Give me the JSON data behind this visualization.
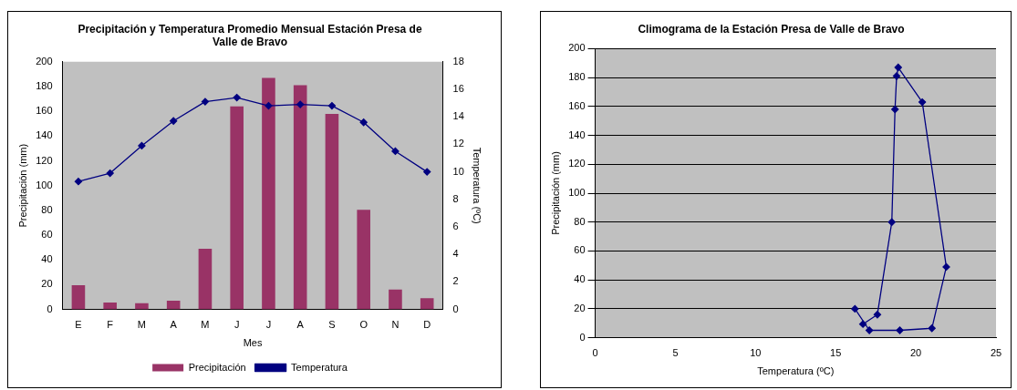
{
  "chart_data": [
    {
      "type": "bar",
      "title": "Precipitación y Temperatura Promedio Mensual Estación Presa de Valle de Bravo",
      "xlabel": "Mes",
      "ylabel": "Precipitación (mm)",
      "y2label": "Temperatura (ºC)",
      "categories": [
        "E",
        "F",
        "M",
        "A",
        "M",
        "J",
        "J",
        "A",
        "S",
        "O",
        "N",
        "D"
      ],
      "series": [
        {
          "name": "Precipitación",
          "type": "bar",
          "color": "#993366",
          "values": [
            19.6,
            5.6,
            5,
            7,
            49,
            164,
            187,
            181,
            158,
            80.5,
            16,
            9
          ]
        },
        {
          "name": "Temperatura",
          "type": "line",
          "axis": "y2",
          "color": "#000080",
          "marker": "diamond",
          "values": [
            9.3,
            9.9,
            11.9,
            13.7,
            15.1,
            15.4,
            14.8,
            14.9,
            14.8,
            13.6,
            11.5,
            10.0
          ]
        }
      ],
      "ylim": [
        0,
        200
      ],
      "yticks": [
        0,
        20,
        40,
        60,
        80,
        100,
        120,
        140,
        160,
        180,
        200
      ],
      "y2lim": [
        0,
        18
      ],
      "y2ticks": [
        0,
        2,
        4,
        6,
        8,
        10,
        12,
        14,
        16,
        18
      ],
      "legend": "bottom",
      "grid": false
    },
    {
      "type": "line",
      "line_style": "solid",
      "title": "Climograma de la Estación Presa de Valle de Bravo",
      "xlabel": "Temperatura (ºC)",
      "ylabel": "Precipitación (mm)",
      "series": [
        {
          "color": "#000080",
          "x": [
            16.2,
            17.1,
            19.0,
            21.0,
            21.9,
            20.4,
            18.9,
            18.8,
            18.7,
            18.5,
            17.6,
            16.7
          ],
          "values": [
            20,
            5.1,
            5.1,
            6.5,
            49,
            163,
            187,
            181,
            158,
            80,
            16,
            9.4
          ]
        }
      ],
      "xlim": [
        0,
        25
      ],
      "xticks": [
        0,
        5,
        10,
        15,
        20,
        25
      ],
      "ylim": [
        0,
        200
      ],
      "yticks": [
        0,
        20,
        40,
        60,
        80,
        100,
        120,
        140,
        160,
        180,
        200
      ],
      "marker": "diamond",
      "grid": "y",
      "legend": false
    }
  ]
}
